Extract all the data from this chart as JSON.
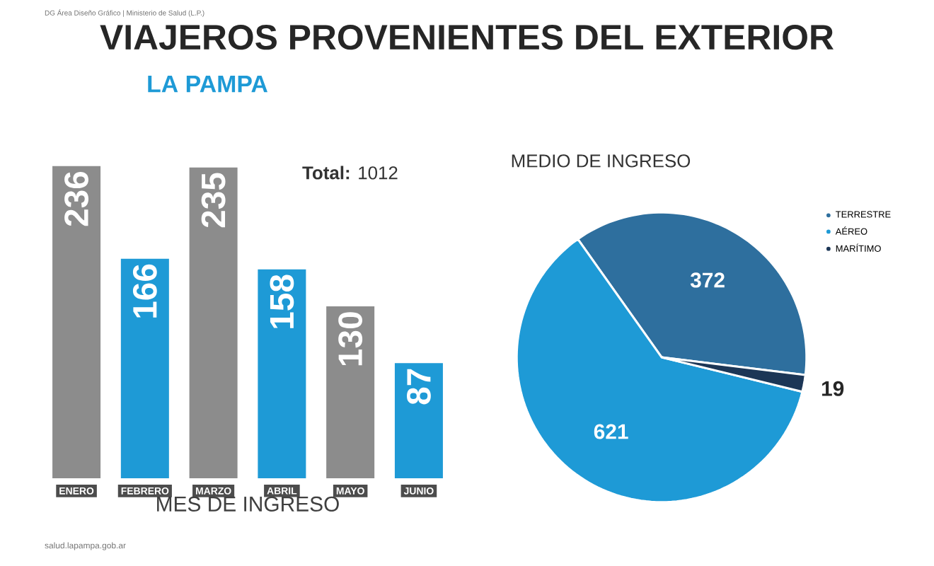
{
  "chart_data": [
    {
      "type": "bar",
      "title": "VIAJEROS PROVENIENTES DEL EXTERIOR",
      "subtitle": "LA PAMPA",
      "xlabel": "MES DE INGRESO",
      "categories": [
        "ENERO",
        "FEBRERO",
        "MARZO",
        "ABRIL",
        "MAYO",
        "JUNIO"
      ],
      "values": [
        236,
        166,
        235,
        158,
        130,
        87
      ],
      "colors": [
        "#8c8c8c",
        "#1e9ad6",
        "#8c8c8c",
        "#1e9ad6",
        "#8c8c8c",
        "#1e9ad6"
      ],
      "data_labels": true,
      "annotations": [
        "**Total:** 1012",
        "DG Área Diseño Gráfico | Ministerio de Salud (L.P.)",
        "salud.lapampa.gob.ar"
      ]
    },
    {
      "type": "pie",
      "title": "MEDIO DE INGRESO",
      "categories": [
        "TERRESTRE",
        "AÉREO",
        "MARÍTIMO"
      ],
      "values": [
        372,
        621,
        19
      ],
      "colors": [
        "#2e6f9e",
        "#1e9ad6",
        "#1c3656"
      ],
      "data_labels": true,
      "legend": "top right"
    }
  ]
}
